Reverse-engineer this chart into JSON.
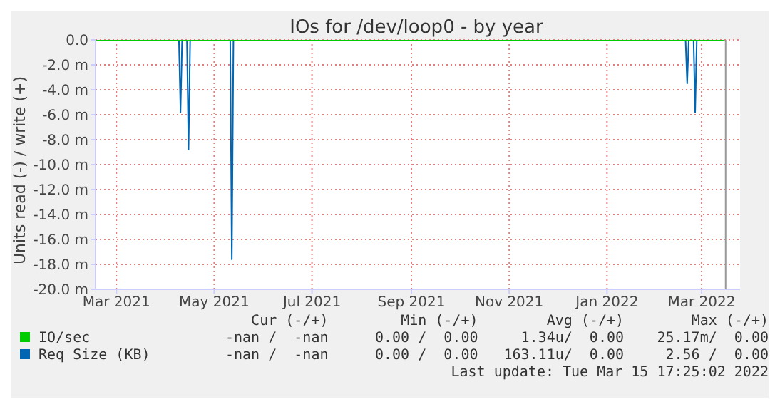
{
  "chart_data": {
    "type": "line",
    "title": "IOs for /dev/loop0 - by year",
    "ylabel": "Units read (-) / write (+)",
    "xlim": [
      "2021-02-16",
      "2022-03-25"
    ],
    "xticks": [
      {
        "value": "2021-03-01",
        "label": "Mar 2021"
      },
      {
        "value": "2021-05-01",
        "label": "May 2021"
      },
      {
        "value": "2021-07-01",
        "label": "Jul 2021"
      },
      {
        "value": "2021-09-01",
        "label": "Sep 2021"
      },
      {
        "value": "2021-11-01",
        "label": "Nov 2021"
      },
      {
        "value": "2022-01-01",
        "label": "Jan 2022"
      },
      {
        "value": "2022-03-01",
        "label": "Mar 2022"
      }
    ],
    "ylim": [
      -20,
      0
    ],
    "yticks": [
      {
        "value": 0,
        "label": "0.0"
      },
      {
        "value": -2,
        "label": "-2.0 m"
      },
      {
        "value": -4,
        "label": "-4.0 m"
      },
      {
        "value": -6,
        "label": "-6.0 m"
      },
      {
        "value": -8,
        "label": "-8.0 m"
      },
      {
        "value": -10,
        "label": "-10.0 m"
      },
      {
        "value": -12,
        "label": "-12.0 m"
      },
      {
        "value": -14,
        "label": "-14.0 m"
      },
      {
        "value": -16,
        "label": "-16.0 m"
      },
      {
        "value": -18,
        "label": "-18.0 m"
      },
      {
        "value": -20,
        "label": "-20.0 m"
      }
    ],
    "grid": true,
    "legend": "bottom",
    "marker": "none",
    "line_style": "solid",
    "series": [
      {
        "name": "IO/sec",
        "color": "#00cc00",
        "x": [
          "2021-02-16",
          "2022-03-15"
        ],
        "values": [
          0,
          0
        ]
      },
      {
        "name": "Req Size (KB)",
        "color": "#0066b3",
        "x": [
          "2021-02-16",
          "2021-04-09",
          "2021-04-10",
          "2021-04-11",
          "2021-04-14",
          "2021-04-15",
          "2021-04-16",
          "2021-05-11",
          "2021-05-12",
          "2021-05-13",
          "2022-02-19",
          "2022-02-20",
          "2022-02-21",
          "2022-02-24",
          "2022-02-25",
          "2022-02-26",
          "2022-03-15"
        ],
        "values": [
          0,
          0,
          -5.8,
          0,
          0,
          -8.8,
          0,
          0,
          -17.6,
          0,
          0,
          -3.5,
          0,
          0,
          -5.8,
          0,
          0
        ]
      }
    ],
    "ref_lines": [
      {
        "axis": "x",
        "value": "2022-03-16",
        "color": "#999999"
      }
    ],
    "annotations": [
      "Cur (-/+)",
      "Min (-/+)",
      "Avg (-/+)",
      "Max (-/+)",
      "-nan /  -nan",
      "0.00 /  0.00",
      "1.34u/  0.00",
      "25.17m/  0.00",
      "-nan /  -nan",
      "0.00 /  0.00",
      "163.11u/  0.00",
      "2.56 /  0.00",
      "Last update: Tue Mar 15 17:25:02 2022"
    ]
  }
}
